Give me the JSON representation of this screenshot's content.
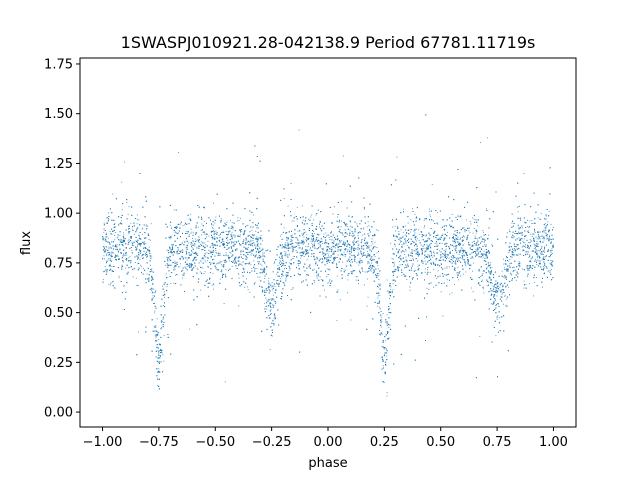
{
  "chart_data": {
    "type": "scatter",
    "title": "1SWASPJ010921.28-042138.9 Period 67781.11719s",
    "xlabel": "phase",
    "ylabel": "flux",
    "xlim": [
      -1.1,
      1.1
    ],
    "ylim": [
      -0.075,
      1.78
    ],
    "xticks": [
      -1.0,
      -0.75,
      -0.5,
      -0.25,
      0.0,
      0.25,
      0.5,
      0.75,
      1.0
    ],
    "xtick_labels": [
      "−1.00",
      "−0.75",
      "−0.50",
      "−0.25",
      "0.00",
      "0.25",
      "0.50",
      "0.75",
      "1.00"
    ],
    "yticks": [
      0.0,
      0.25,
      0.5,
      0.75,
      1.0,
      1.25,
      1.5,
      1.75
    ],
    "ytick_labels": [
      "0.00",
      "0.25",
      "0.50",
      "0.75",
      "1.00",
      "1.25",
      "1.50",
      "1.75"
    ],
    "marker_color": "#1f77b4",
    "series": [
      {
        "x_range": [
          -1.0,
          1.0
        ],
        "baseline_flux": 0.82,
        "primary_minima_phase": [
          -0.75,
          0.25
        ],
        "primary_minimum_flux": 0.28,
        "secondary_minima_phase": [
          -0.25,
          0.75
        ],
        "secondary_minimum_flux": 0.55
      }
    ]
  }
}
